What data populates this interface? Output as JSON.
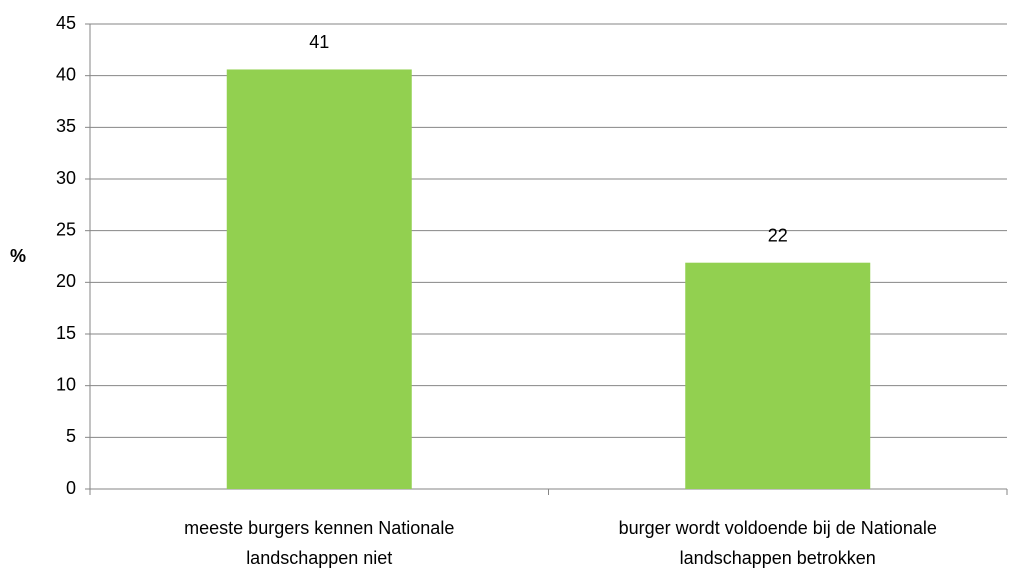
{
  "chart_data": {
    "type": "bar",
    "y_label": "%",
    "categories": [
      "meeste burgers kennen Nationale landschappen niet",
      "burger wordt voldoende bij de Nationale landschappen betrokken"
    ],
    "values": [
      40.6,
      21.9
    ],
    "value_labels": [
      "41",
      "22"
    ],
    "color": "#92d050",
    "ylim": [
      0,
      45
    ],
    "yticks": [
      0,
      5,
      10,
      15,
      20,
      25,
      30,
      35,
      40,
      45
    ],
    "grid": true
  }
}
